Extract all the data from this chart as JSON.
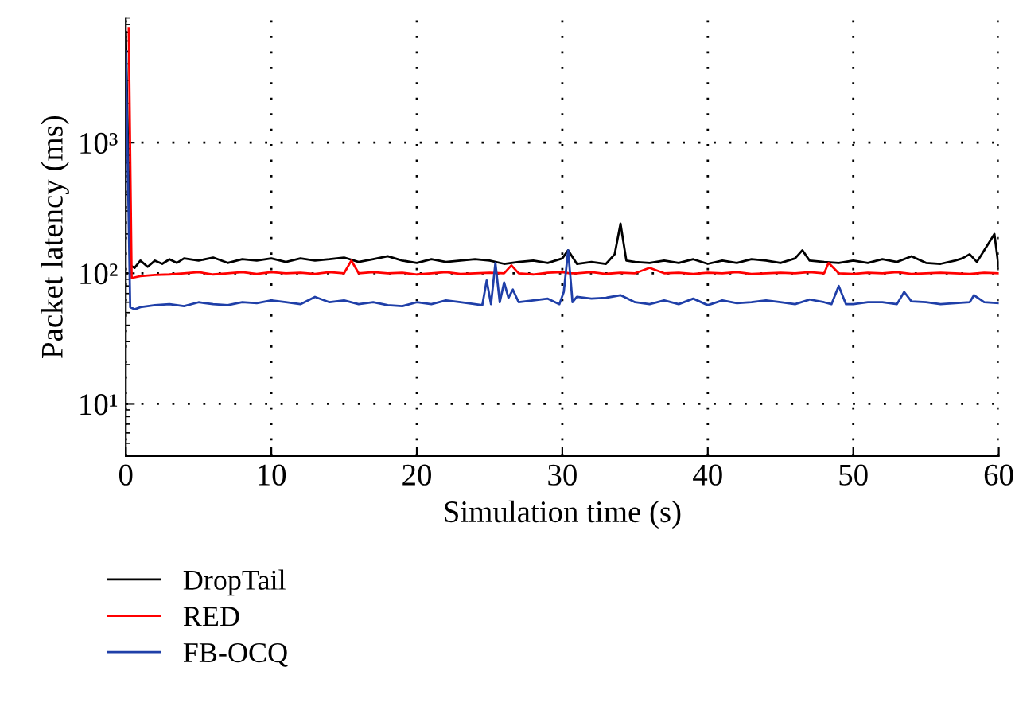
{
  "chart_data": {
    "type": "line",
    "xlabel": "Simulation time (s)",
    "ylabel": "Packet latency (ms)",
    "log": "y",
    "xlim": [
      0,
      60
    ],
    "xticks": [
      0,
      10,
      20,
      30,
      40,
      50,
      60
    ],
    "ylim": [
      4,
      9000
    ],
    "yticks": [
      {
        "value": 10,
        "label": "10¹"
      },
      {
        "value": 100,
        "label": "10²"
      },
      {
        "value": 1000,
        "label": "10³"
      }
    ],
    "grid": true,
    "line_style": "solid",
    "marker": "none",
    "legend": "bottom left",
    "series": [
      {
        "name": "DropTail",
        "color": "#000000",
        "x": [
          0,
          0.3,
          0.6,
          1,
          1.5,
          2,
          2.5,
          3,
          3.5,
          4,
          5,
          6,
          7,
          8,
          9,
          10,
          11,
          12,
          13,
          14,
          15,
          16,
          17,
          18,
          19,
          20,
          21,
          22,
          23,
          24,
          25,
          26,
          27,
          28,
          29,
          30,
          30.4,
          31,
          32,
          33,
          33.6,
          34,
          34.4,
          35,
          36,
          37,
          38,
          39,
          40,
          41,
          42,
          43,
          44,
          45,
          46,
          46.5,
          47,
          48,
          49,
          50,
          51,
          52,
          53,
          54,
          55,
          56,
          57,
          57.5,
          58,
          58.5,
          59,
          59.7,
          60
        ],
        "values": [
          7000,
          115,
          110,
          125,
          112,
          125,
          118,
          128,
          120,
          130,
          125,
          132,
          120,
          128,
          125,
          130,
          122,
          130,
          125,
          128,
          132,
          122,
          128,
          135,
          125,
          120,
          128,
          122,
          125,
          128,
          125,
          118,
          122,
          125,
          120,
          130,
          150,
          118,
          122,
          118,
          140,
          240,
          125,
          122,
          120,
          125,
          120,
          128,
          118,
          125,
          120,
          128,
          125,
          120,
          130,
          150,
          125,
          122,
          120,
          125,
          120,
          128,
          122,
          135,
          120,
          118,
          125,
          130,
          140,
          122,
          150,
          200,
          110
        ]
      },
      {
        "name": "RED",
        "color": "#ff0000",
        "x": [
          0.2,
          0.4,
          0.6,
          1,
          2,
          3,
          4,
          5,
          6,
          7,
          8,
          9,
          10,
          11,
          12,
          13,
          14,
          15,
          15.5,
          16,
          17,
          18,
          19,
          20,
          21,
          22,
          23,
          24,
          25,
          26,
          26.5,
          27,
          28,
          29,
          30,
          30.5,
          31,
          32,
          33,
          34,
          35,
          36,
          37,
          38,
          39,
          40,
          41,
          42,
          43,
          44,
          45,
          46,
          47,
          48,
          48.3,
          49,
          50,
          51,
          52,
          53,
          54,
          55,
          56,
          57,
          58,
          59,
          60
        ],
        "values": [
          7500,
          92,
          93,
          95,
          97,
          98,
          100,
          102,
          98,
          100,
          102,
          99,
          102,
          100,
          101,
          99,
          102,
          100,
          125,
          100,
          102,
          100,
          101,
          98,
          100,
          102,
          99,
          100,
          101,
          100,
          115,
          100,
          98,
          101,
          102,
          100,
          100,
          102,
          99,
          101,
          100,
          110,
          100,
          101,
          99,
          101,
          100,
          102,
          99,
          100,
          101,
          100,
          102,
          100,
          120,
          100,
          99,
          101,
          100,
          102,
          99,
          100,
          101,
          100,
          99,
          101,
          100
        ]
      },
      {
        "name": "FB-OCQ",
        "color": "#1f3fa8",
        "x": [
          0,
          0.3,
          0.6,
          1,
          2,
          3,
          4,
          5,
          6,
          7,
          8,
          9,
          10,
          11,
          12,
          13,
          14,
          15,
          16,
          17,
          18,
          19,
          20,
          21,
          22,
          23,
          24,
          24.5,
          24.8,
          25.1,
          25.4,
          25.7,
          26,
          26.3,
          26.6,
          27,
          28,
          29,
          29.8,
          30.1,
          30.4,
          30.7,
          31,
          32,
          33,
          34,
          35,
          36,
          37,
          38,
          39,
          40,
          41,
          42,
          43,
          44,
          45,
          46,
          47,
          48,
          48.5,
          49,
          49.5,
          50,
          51,
          52,
          53,
          53.5,
          54,
          55,
          56,
          57,
          58,
          58.3,
          59,
          60
        ],
        "values": [
          5000,
          55,
          53,
          55,
          57,
          58,
          56,
          60,
          58,
          57,
          60,
          59,
          62,
          60,
          58,
          66,
          60,
          62,
          58,
          60,
          57,
          56,
          60,
          58,
          62,
          60,
          58,
          57,
          88,
          58,
          120,
          60,
          85,
          65,
          75,
          60,
          62,
          64,
          58,
          72,
          150,
          60,
          66,
          64,
          65,
          68,
          60,
          58,
          62,
          58,
          64,
          57,
          62,
          59,
          60,
          62,
          60,
          58,
          63,
          60,
          58,
          80,
          58,
          58,
          60,
          60,
          58,
          72,
          61,
          60,
          58,
          59,
          60,
          68,
          60,
          59
        ]
      }
    ]
  }
}
